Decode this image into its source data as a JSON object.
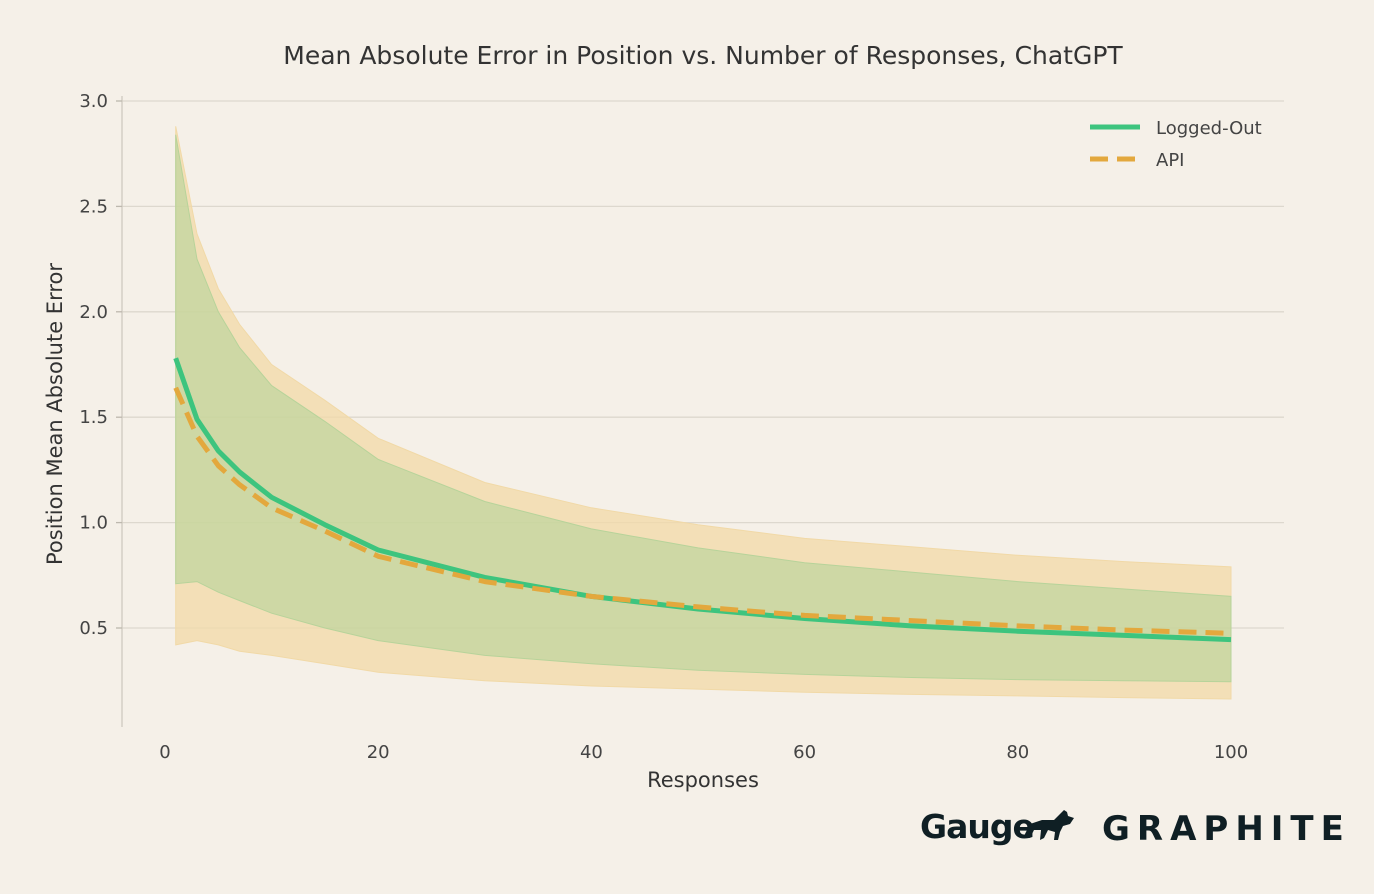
{
  "chart_data": {
    "type": "line",
    "title": "Mean Absolute Error in Position vs. Number of Responses, ChatGPT",
    "xlabel": "Responses",
    "ylabel": "Position Mean Absolute Error",
    "xlim": [
      -4,
      104
    ],
    "ylim": [
      0.05,
      3.05
    ],
    "xticks": [
      0,
      20,
      40,
      60,
      80,
      100
    ],
    "yticks": [
      0.5,
      1.0,
      1.5,
      2.0,
      2.5,
      3.0
    ],
    "xtick_labels": [
      "0",
      "20",
      "40",
      "60",
      "80",
      "100"
    ],
    "ytick_labels": [
      "0.5",
      "1.0",
      "1.5",
      "2.0",
      "2.5",
      "3.0"
    ],
    "grid": "horizontal",
    "legend_position": "top-right",
    "x": [
      1,
      3,
      5,
      7,
      10,
      15,
      20,
      30,
      40,
      50,
      60,
      70,
      80,
      90,
      100
    ],
    "series": [
      {
        "name": "Logged-Out",
        "style": "solid",
        "color": "#3dc47e",
        "band_color": "#b7d39a",
        "values": [
          1.78,
          1.49,
          1.34,
          1.24,
          1.12,
          0.99,
          0.87,
          0.74,
          0.65,
          0.59,
          0.545,
          0.51,
          0.485,
          0.465,
          0.445
        ],
        "lower": [
          0.71,
          0.72,
          0.67,
          0.63,
          0.57,
          0.5,
          0.44,
          0.37,
          0.33,
          0.3,
          0.28,
          0.265,
          0.255,
          0.25,
          0.245
        ],
        "upper": [
          2.84,
          2.25,
          2.0,
          1.83,
          1.65,
          1.48,
          1.3,
          1.1,
          0.97,
          0.88,
          0.81,
          0.765,
          0.72,
          0.685,
          0.65
        ]
      },
      {
        "name": "API",
        "style": "dashed",
        "color": "#e3a83d",
        "band_color": "#f1d9a7",
        "values": [
          1.64,
          1.41,
          1.27,
          1.18,
          1.07,
          0.96,
          0.84,
          0.72,
          0.65,
          0.6,
          0.56,
          0.535,
          0.51,
          0.49,
          0.475
        ],
        "lower": [
          0.42,
          0.44,
          0.42,
          0.39,
          0.37,
          0.33,
          0.29,
          0.25,
          0.225,
          0.21,
          0.195,
          0.185,
          0.178,
          0.17,
          0.163
        ],
        "upper": [
          2.88,
          2.37,
          2.11,
          1.94,
          1.75,
          1.58,
          1.4,
          1.19,
          1.07,
          0.99,
          0.925,
          0.885,
          0.845,
          0.815,
          0.79
        ]
      }
    ]
  },
  "logos": {
    "gauge": "Gauge",
    "graphite": "GRAPHITE"
  }
}
